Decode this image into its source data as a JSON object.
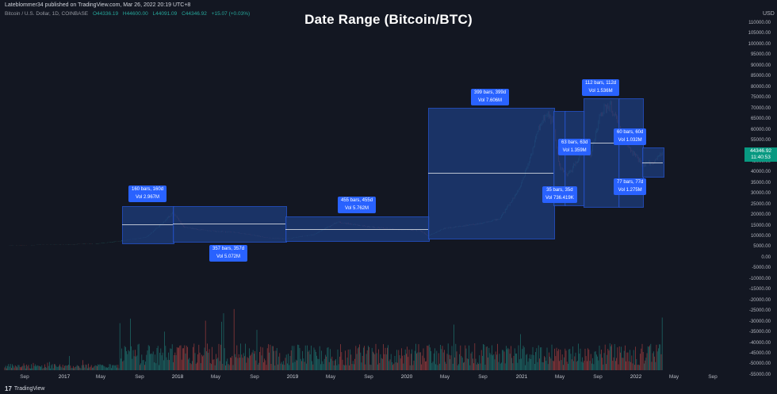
{
  "header": {
    "published_by": "Lateblommer34 published on TradingView.com, Mar 26, 2022 20:19 UTC+8",
    "symbol": "Bitcoin / U.S. Dollar, 1D, COINBASE",
    "open": "O44336.19",
    "high": "H44600.00",
    "low": "L44091.09",
    "close": "C44346.92",
    "change": "+15.07 (+0.03%)",
    "currency": "USD"
  },
  "title": "Date Range (Bitcoin/BTC)",
  "price_tag": {
    "price": "44346.92",
    "countdown": "11:40:53"
  },
  "y_axis": [
    "110000.00",
    "105000.00",
    "100000.00",
    "95000.00",
    "90000.00",
    "85000.00",
    "80000.00",
    "75000.00",
    "70000.00",
    "65000.00",
    "60000.00",
    "55000.00",
    "50000.00",
    "45000.00",
    "40000.00",
    "35000.00",
    "30000.00",
    "25000.00",
    "20000.00",
    "15000.00",
    "10000.00",
    "5000.00",
    "0.00",
    "-5000.00",
    "-10000.00",
    "-15000.00",
    "-20000.00",
    "-25000.00",
    "-30000.00",
    "-35000.00",
    "-40000.00",
    "-45000.00",
    "-50000.00",
    "-55000.00"
  ],
  "x_axis": [
    {
      "label": "Sep",
      "year": false
    },
    {
      "label": "2017",
      "year": true
    },
    {
      "label": "May",
      "year": false
    },
    {
      "label": "Sep",
      "year": false
    },
    {
      "label": "2018",
      "year": true
    },
    {
      "label": "May",
      "year": false
    },
    {
      "label": "Sep",
      "year": false
    },
    {
      "label": "2019",
      "year": true
    },
    {
      "label": "May",
      "year": false
    },
    {
      "label": "Sep",
      "year": false
    },
    {
      "label": "2020",
      "year": true
    },
    {
      "label": "May",
      "year": false
    },
    {
      "label": "Sep",
      "year": false
    },
    {
      "label": "2021",
      "year": true
    },
    {
      "label": "May",
      "year": false
    },
    {
      "label": "Sep",
      "year": false
    },
    {
      "label": "2022",
      "year": true
    },
    {
      "label": "May",
      "year": false
    },
    {
      "label": "Sep",
      "year": false
    }
  ],
  "date_ranges": [
    {
      "bars": "160 bars, 160d",
      "vol": "Vol 2.967M"
    },
    {
      "bars": "357 bars, 357d",
      "vol": "Vol 5.072M"
    },
    {
      "bars": "455 bars, 455d",
      "vol": "Vol 5.762M"
    },
    {
      "bars": "399 bars, 399d",
      "vol": "Vol 7.606M"
    },
    {
      "bars": "35 bars, 35d",
      "vol": "Vol 736.419K"
    },
    {
      "bars": "63 bars, 63d",
      "vol": "Vol 1.359M"
    },
    {
      "bars": "112 bars, 112d",
      "vol": "Vol 1.536M"
    },
    {
      "bars": "77 bars, 77d",
      "vol": "Vol 1.275M"
    },
    {
      "bars": "60 bars, 60d",
      "vol": "Vol 1.032M"
    }
  ],
  "colors": {
    "up": "#26a69a",
    "down": "#ef5350",
    "range": "#2962ff",
    "background": "#131722"
  },
  "footer": {
    "logo": "TradingView"
  }
}
